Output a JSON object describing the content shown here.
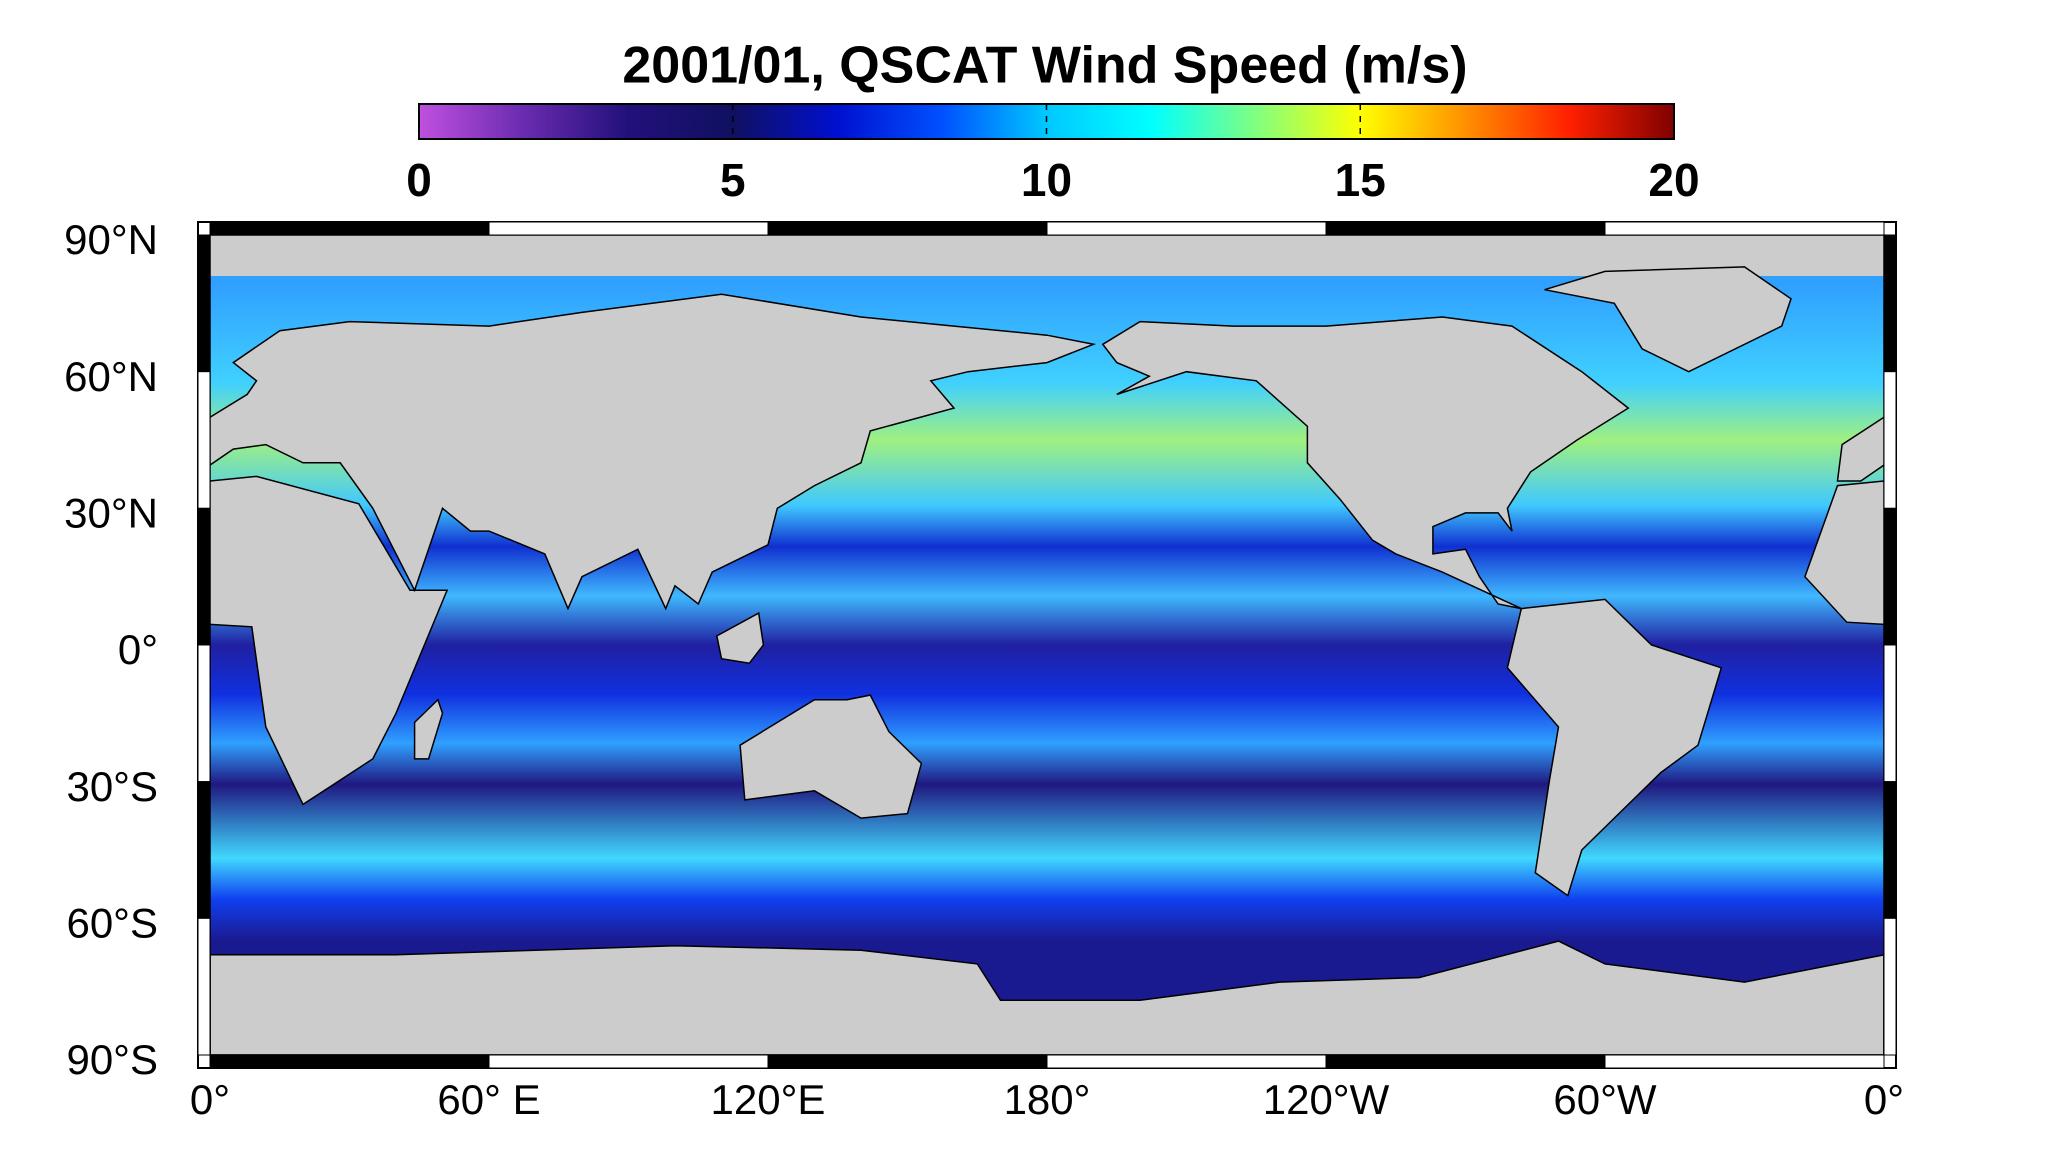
{
  "chart_data": {
    "type": "map",
    "title": "2001/01,  QSCAT Wind Speed (m/s)",
    "colorbar": {
      "clim": [
        0,
        20
      ],
      "ticks": [
        0,
        5,
        10,
        15,
        20
      ],
      "colors": [
        "#c050e0",
        "#6a2bb0",
        "#22107a",
        "#101060",
        "#0010d0",
        "#0050ff",
        "#00c8ff",
        "#00ffff",
        "#80ff80",
        "#ffff00",
        "#ff9000",
        "#ff2000",
        "#800000"
      ]
    },
    "lat_labels": [
      "90°N",
      "60°N",
      "30°N",
      "0°",
      "30°S",
      "60°S",
      "90°S"
    ],
    "lon_labels": [
      "0°",
      "60° E",
      "120°E",
      "180°",
      "120°W",
      "60°W",
      "0°"
    ],
    "land_color": "#cccccc"
  }
}
